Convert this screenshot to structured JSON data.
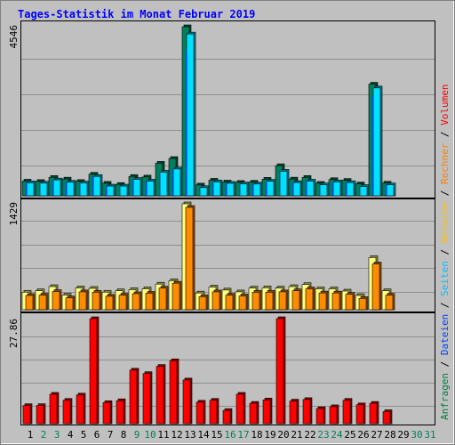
{
  "title": "Tages-Statistik im Monat Februar 2019",
  "legend": [
    {
      "text": "Anfragen",
      "color": "#008040"
    },
    {
      "text": "/",
      "color": "#000000"
    },
    {
      "text": "Dateien",
      "color": "#0040ff"
    },
    {
      "text": "/",
      "color": "#000000"
    },
    {
      "text": "Seiten",
      "color": "#00c0ff"
    },
    {
      "text": "/",
      "color": "#000000"
    },
    {
      "text": "Besuche",
      "color": "#ffc000"
    },
    {
      "text": "/",
      "color": "#000000"
    },
    {
      "text": "Rechner",
      "color": "#ff8000"
    },
    {
      "text": "/",
      "color": "#000000"
    },
    {
      "text": "Volumen",
      "color": "#ff0000"
    }
  ],
  "colors": {
    "anfragen": "#00805c",
    "dateien": "#0040ff",
    "seiten": "#00e0ff",
    "besuche": "#ffff80",
    "rechner": "#ff8c00",
    "volumen": "#ff0000",
    "title": "#0000ff",
    "day_normal": "#000000",
    "day_weekend": "#00805c"
  },
  "chart_data": [
    {
      "type": "bar",
      "panel": "top",
      "ymax_label": "4546",
      "ymax": 4546,
      "series": [
        {
          "name": "Anfragen",
          "values": [
            396,
            386,
            496,
            451,
            386,
            581,
            337,
            306,
            521,
            506,
            876,
            1004,
            4546,
            291,
            420,
            371,
            361,
            366,
            446,
            811,
            451,
            496,
            336,
            436,
            416,
            321,
            3002,
            342
          ]
        },
        {
          "name": "Dateien",
          "values": [
            351,
            341,
            426,
            366,
            346,
            521,
            262,
            262,
            441,
            396,
            636,
            721,
            3900,
            221,
            376,
            336,
            321,
            316,
            391,
            661,
            356,
            396,
            296,
            376,
            356,
            251,
            2700,
            296
          ]
        },
        {
          "name": "Seiten",
          "values": [
            351,
            341,
            426,
            366,
            346,
            521,
            262,
            262,
            441,
            396,
            636,
            721,
            4351,
            221,
            376,
            336,
            321,
            316,
            391,
            661,
            356,
            396,
            296,
            376,
            356,
            251,
            2900,
            296
          ]
        }
      ]
    },
    {
      "type": "bar",
      "panel": "middle",
      "ymax_label": "1429",
      "ymax": 1429,
      "series": [
        {
          "name": "Besuche",
          "values": [
            237,
            256,
            312,
            198,
            294,
            288,
            237,
            256,
            271,
            282,
            346,
            392,
            1429,
            226,
            306,
            266,
            241,
            292,
            296,
            292,
            312,
            340,
            282,
            282,
            252,
            192,
            704,
            256
          ]
        },
        {
          "name": "Rechner",
          "values": [
            192,
            196,
            246,
            160,
            241,
            236,
            182,
            196,
            216,
            222,
            292,
            358,
            1381,
            176,
            241,
            196,
            186,
            236,
            236,
            241,
            256,
            282,
            226,
            226,
            208,
            152,
            618,
            196
          ]
        }
      ]
    },
    {
      "type": "bar",
      "panel": "bottom",
      "ymax_label": "27.86",
      "ymax": 27.86,
      "series": [
        {
          "name": "Volumen",
          "values": [
            4.8,
            4.8,
            7.8,
            6.2,
            7.6,
            27.86,
            5.6,
            6.1,
            14.2,
            13.3,
            15.2,
            16.7,
            11.6,
            5.7,
            6.2,
            3.5,
            7.8,
            5.4,
            6.3,
            27.86,
            6.0,
            6.4,
            4.0,
            4.5,
            6.2,
            5.0,
            5.4,
            3.2
          ]
        }
      ]
    }
  ],
  "days": [
    {
      "label": "1",
      "weekend": false
    },
    {
      "label": "2",
      "weekend": true
    },
    {
      "label": "3",
      "weekend": true
    },
    {
      "label": "4",
      "weekend": false
    },
    {
      "label": "5",
      "weekend": false
    },
    {
      "label": "6",
      "weekend": false
    },
    {
      "label": "7",
      "weekend": false
    },
    {
      "label": "8",
      "weekend": false
    },
    {
      "label": "9",
      "weekend": true
    },
    {
      "label": "10",
      "weekend": true
    },
    {
      "label": "11",
      "weekend": false
    },
    {
      "label": "12",
      "weekend": false
    },
    {
      "label": "13",
      "weekend": false
    },
    {
      "label": "14",
      "weekend": false
    },
    {
      "label": "15",
      "weekend": false
    },
    {
      "label": "16",
      "weekend": true
    },
    {
      "label": "17",
      "weekend": true
    },
    {
      "label": "18",
      "weekend": false
    },
    {
      "label": "19",
      "weekend": false
    },
    {
      "label": "20",
      "weekend": false
    },
    {
      "label": "21",
      "weekend": false
    },
    {
      "label": "22",
      "weekend": false
    },
    {
      "label": "23",
      "weekend": true
    },
    {
      "label": "24",
      "weekend": true
    },
    {
      "label": "25",
      "weekend": false
    },
    {
      "label": "26",
      "weekend": false
    },
    {
      "label": "27",
      "weekend": false
    },
    {
      "label": "28",
      "weekend": false
    },
    {
      "label": "29",
      "weekend": false
    },
    {
      "label": "30",
      "weekend": true
    },
    {
      "label": "31",
      "weekend": true
    }
  ]
}
